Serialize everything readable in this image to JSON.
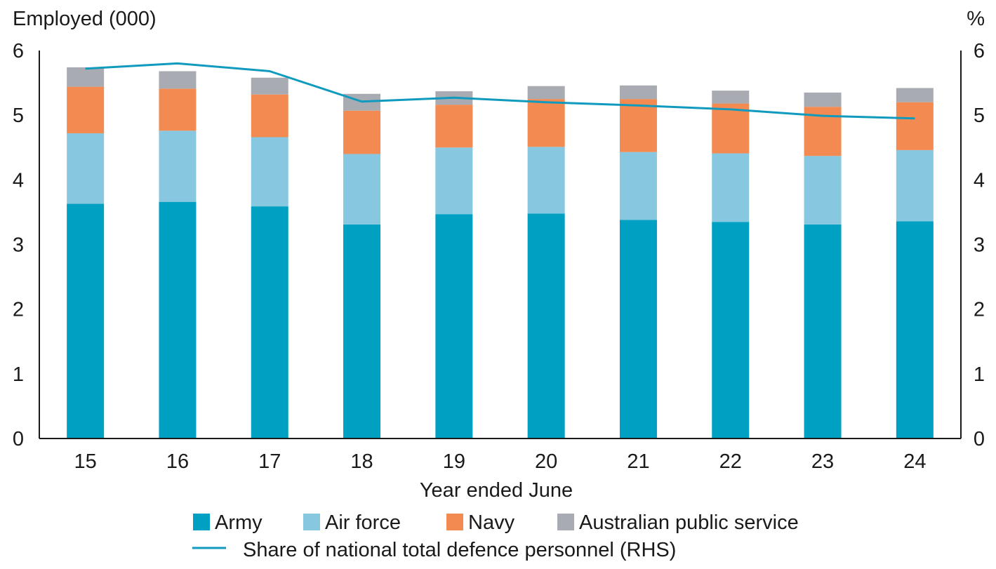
{
  "chart_data": {
    "type": "bar",
    "stacked": true,
    "left_axis_label": "Employed (000)",
    "right_axis_label": "%",
    "xlabel": "Year ended June",
    "categories": [
      "15",
      "16",
      "17",
      "18",
      "19",
      "20",
      "21",
      "22",
      "23",
      "24"
    ],
    "ylim_left": [
      0,
      6
    ],
    "ylim_right": [
      0,
      6
    ],
    "yticks_left": [
      "0",
      "1",
      "2",
      "3",
      "4",
      "5",
      "6"
    ],
    "yticks_right": [
      "0",
      "1",
      "2",
      "3",
      "4",
      "5",
      "6"
    ],
    "grid": false,
    "legend_position": "bottom",
    "series": [
      {
        "name": "Army",
        "type": "bar",
        "color": "#00A0C2",
        "values": [
          3.63,
          3.66,
          3.59,
          3.31,
          3.47,
          3.48,
          3.38,
          3.35,
          3.31,
          3.36
        ]
      },
      {
        "name": "Air force",
        "type": "bar",
        "color": "#87C8E0",
        "values": [
          1.09,
          1.1,
          1.07,
          1.09,
          1.03,
          1.03,
          1.05,
          1.06,
          1.06,
          1.1
        ]
      },
      {
        "name": "Navy",
        "type": "bar",
        "color": "#F28A52",
        "values": [
          0.72,
          0.65,
          0.66,
          0.67,
          0.66,
          0.74,
          0.82,
          0.77,
          0.76,
          0.74
        ]
      },
      {
        "name": "Australian public service",
        "type": "bar",
        "color": "#A9ABB3",
        "values": [
          0.3,
          0.27,
          0.26,
          0.26,
          0.21,
          0.2,
          0.21,
          0.2,
          0.22,
          0.22
        ]
      },
      {
        "name": "Share of national total defence personnel (RHS)",
        "type": "line",
        "axis": "right",
        "color": "#109BBE",
        "values": [
          5.72,
          5.8,
          5.68,
          5.21,
          5.27,
          5.2,
          5.15,
          5.09,
          4.99,
          4.95
        ]
      }
    ]
  }
}
